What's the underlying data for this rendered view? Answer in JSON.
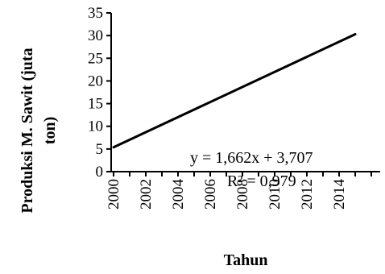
{
  "chart_data": {
    "type": "line",
    "xlabel": "Tahun",
    "ylabel_lines": [
      "Produksi M. Sawit (juta",
      "ton)"
    ],
    "x_ticks": [
      "2000",
      "2002",
      "2004",
      "2006",
      "2008",
      "2010",
      "2012",
      "2014"
    ],
    "y_ticks": [
      "0",
      "5",
      "10",
      "15",
      "20",
      "25",
      "30",
      "35"
    ],
    "ylim": [
      0,
      35
    ],
    "x": [
      2000,
      2015
    ],
    "series": [
      {
        "values": [
          5.369,
          30.299
        ]
      }
    ],
    "trendline": {
      "equation": "y = 1,662x + 3,707",
      "r_squared": "R² = 0,979"
    },
    "grid": false,
    "legend": "none"
  }
}
